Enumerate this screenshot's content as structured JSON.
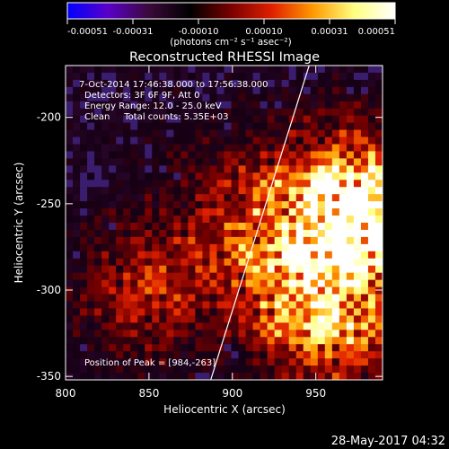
{
  "colorbar": {
    "ticks": [
      "-0.00051",
      "-0.00031",
      "-0.00010",
      "0.00010",
      "0.00031",
      "0.00051"
    ],
    "units": "(photons cm⁻² s⁻¹ asec⁻²)",
    "colors": [
      "#0000ff",
      "#5a00c8",
      "#3a0a3a",
      "#000000",
      "#7a0000",
      "#e02000",
      "#ff9a00",
      "#ffff80",
      "#ffffff"
    ]
  },
  "chart_data": {
    "type": "heatmap",
    "title": "Reconstructed RHESSI Image",
    "xlabel": "Heliocentric X (arcsec)",
    "ylabel": "Heliocentric Y (arcsec)",
    "xlim": [
      800,
      990
    ],
    "ylim": [
      -352,
      -170
    ],
    "xticks": [
      "800",
      "850",
      "900",
      "950"
    ],
    "yticks": [
      "-200",
      "-250",
      "-300",
      "-350"
    ],
    "xtick_values": [
      800,
      850,
      900,
      950
    ],
    "ytick_values": [
      -200,
      -250,
      -300,
      -350
    ],
    "limb_line": [
      [
        887,
        -352
      ],
      [
        946,
        -170
      ]
    ],
    "peak": [
      984,
      -263
    ],
    "bright_regions": [
      {
        "x": 968,
        "y": -245,
        "level": 1.0
      },
      {
        "x": 984,
        "y": -263,
        "level": 1.0
      },
      {
        "x": 940,
        "y": -290,
        "level": 0.8
      },
      {
        "x": 960,
        "y": -320,
        "level": 0.85
      },
      {
        "x": 850,
        "y": -300,
        "level": 0.6
      },
      {
        "x": 905,
        "y": -255,
        "level": 0.5
      }
    ],
    "annotations": [
      "7-Oct-2014 17:46:38.000 to 17:56:38.000",
      "Detectors: 3F 6F 9F, Att 0",
      "Energy Range: 12.0 - 25.0 keV",
      "Clean     Total counts: 5.35E+03",
      "Position of Peak = [984,-263]"
    ]
  },
  "footer": {
    "timestamp": "28-May-2017 04:32"
  }
}
